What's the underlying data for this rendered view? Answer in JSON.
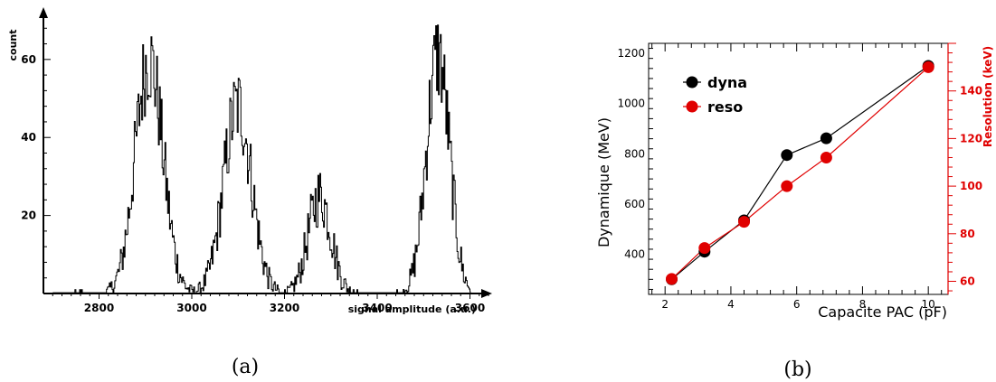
{
  "chart_data": [
    {
      "type": "histogram",
      "caption": "(a)",
      "xlabel": "signal amplitude (a.u.)",
      "ylabel": "count",
      "xlim": [
        2680,
        3640
      ],
      "ylim": [
        0,
        72
      ],
      "xticks": [
        2800,
        3000,
        3200,
        3400,
        3600
      ],
      "yticks": [
        20,
        40,
        60
      ],
      "peaks": [
        {
          "center": 2907,
          "sigma": 30,
          "height": 60
        },
        {
          "center": 3098,
          "sigma": 30,
          "height": 48
        },
        {
          "center": 3275,
          "sigma": 25,
          "height": 25
        },
        {
          "center": 3530,
          "sigma": 25,
          "height": 61
        }
      ],
      "bin_width": 2
    },
    {
      "type": "line",
      "caption": "(b)",
      "xlabel": "Capacite PAC (pF)",
      "ylabel": "Dynamique (MeV)",
      "y2label": "Resolution (keV)",
      "xlim": [
        1.5,
        10.6
      ],
      "ylim": [
        240,
        1240
      ],
      "y2lim": [
        54.5,
        160
      ],
      "xticks": [
        2,
        4,
        6,
        8,
        10
      ],
      "yticks": [
        400,
        600,
        800,
        1000,
        1200
      ],
      "y2ticks": [
        60,
        80,
        100,
        120,
        140
      ],
      "legend_position": "top-left",
      "series": [
        {
          "name": "dyna",
          "axis": "left",
          "color": "#000000",
          "x": [
            2.2,
            3.2,
            4.4,
            5.7,
            6.9,
            10.0
          ],
          "y": [
            300,
            410,
            535,
            795,
            862,
            1150
          ]
        },
        {
          "name": "reso",
          "axis": "right",
          "color": "#e00000",
          "x": [
            2.2,
            3.2,
            4.4,
            5.7,
            6.9,
            10.0
          ],
          "y": [
            61,
            74,
            85,
            100,
            112,
            150
          ]
        }
      ]
    }
  ]
}
